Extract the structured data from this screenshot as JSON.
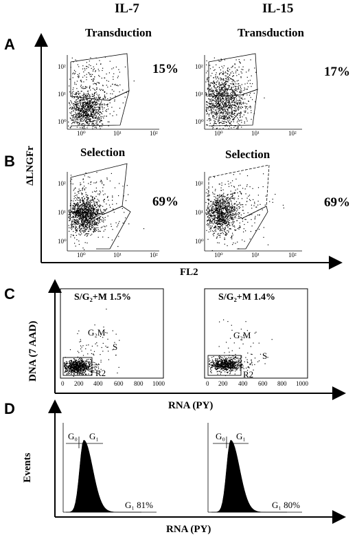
{
  "columns": {
    "left": "IL-7",
    "right": "IL-15"
  },
  "panel_letters": {
    "a": "A",
    "b": "B",
    "c": "C",
    "d": "D"
  },
  "panel_a": {
    "left": {
      "title": "Transduction",
      "percent": "15%"
    },
    "right": {
      "title": "Transduction",
      "percent": "17%"
    }
  },
  "panel_b": {
    "left": {
      "title": "Selection",
      "percent": "69%"
    },
    "right": {
      "title": "Selection",
      "percent": "69%"
    }
  },
  "ab_axes": {
    "y_label": "ΔLNGFr",
    "x_label": "FL2",
    "log_ticks": [
      "10⁰",
      "10¹",
      "10²"
    ]
  },
  "panel_c": {
    "left": {
      "title": "S/G₂+M 1.5%",
      "g2m": "G₂M",
      "s": "S",
      "r2": "R2"
    },
    "right": {
      "title": "S/G₂+M 1.4%",
      "g2m": "G₂M",
      "s": "S",
      "r2": "R2"
    },
    "y_label": "DNA (7 AAD)",
    "x_label": "RNA (PY)",
    "x_ticks_left": [
      "0",
      "200",
      "400",
      "600",
      "800",
      "1000"
    ],
    "x_ticks_right": [
      "0",
      "200",
      "400",
      "600",
      "800",
      "1000"
    ]
  },
  "panel_d": {
    "left": {
      "g0": "G₀",
      "g1": "G₁",
      "g1_pct": "G₁ 81%"
    },
    "right": {
      "g0": "G₀",
      "g1": "G₁",
      "g1_pct": "G₁ 80%"
    },
    "y_label": "Events",
    "x_label": "RNA (PY)"
  }
}
